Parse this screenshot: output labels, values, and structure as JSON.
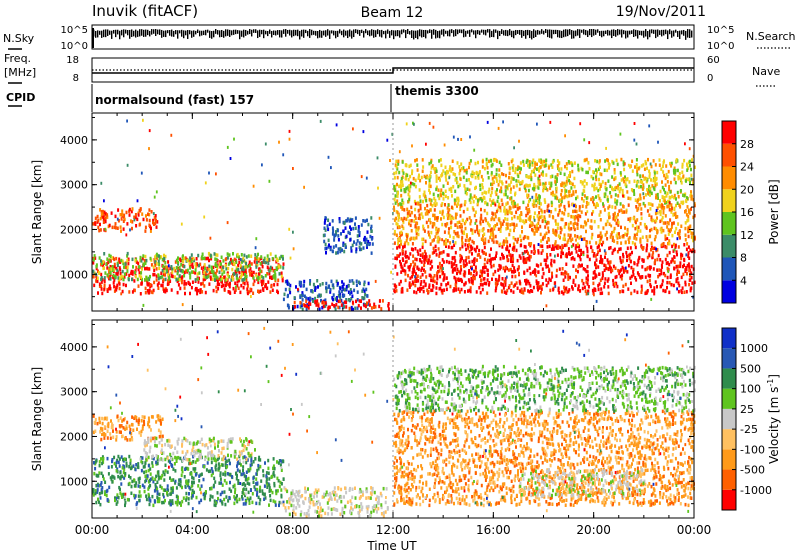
{
  "header": {
    "station": "Inuvik (fitACF)",
    "beam": "Beam 12",
    "date": "19/Nov/2011"
  },
  "labels": {
    "nsky": "N.Sky",
    "freq_line1": "Freq.",
    "freq_line2": "[MHz]",
    "cpid": "CPID",
    "nsearch": "N.Search",
    "nave": "Nave",
    "time_axis": "Time UT"
  },
  "nsky_ticks": [
    "10^5",
    "10^0"
  ],
  "nsearch_ticks": [
    "10^5",
    "10^0"
  ],
  "freq_ticks": [
    "18",
    "8"
  ],
  "nave_ticks": [
    "60",
    "0"
  ],
  "cpid_segments": [
    {
      "label": "normalsound (fast) 157",
      "start": 0,
      "end": 12
    },
    {
      "label": "themis 3300",
      "start": 12,
      "end": 24
    }
  ],
  "chart_data": [
    {
      "type": "heatmap",
      "name": "power",
      "xlabel": "",
      "ylabel": "Slant Range [km]",
      "xlim": [
        0,
        24
      ],
      "ylim": [
        180,
        4600
      ],
      "yticks": [
        1000,
        2000,
        3000,
        4000
      ],
      "colorbar": {
        "label": "Power [dB]",
        "ticks": [
          "4",
          "8",
          "12",
          "16",
          "20",
          "24",
          "28"
        ],
        "tick_values": [
          4,
          8,
          12,
          16,
          20,
          24,
          28
        ],
        "range": [
          0,
          32
        ],
        "colors": [
          "#0000e0",
          "#1f56b8",
          "#3b8c68",
          "#5fc41f",
          "#f0d21c",
          "#ff8c00",
          "#ff5000",
          "#ff0000"
        ]
      },
      "bands": [
        {
          "x": [
            0,
            7.6
          ],
          "y": [
            600,
            1400
          ],
          "level": 7
        },
        {
          "x": [
            0,
            7.6
          ],
          "y": [
            900,
            1500
          ],
          "level": 3
        },
        {
          "x": [
            0,
            2.6
          ],
          "y": [
            2000,
            2500
          ],
          "level": 6
        },
        {
          "x": [
            7.6,
            11.0
          ],
          "y": [
            250,
            900
          ],
          "level": 1
        },
        {
          "x": [
            8.0,
            11.8
          ],
          "y": [
            250,
            450
          ],
          "level": 7
        },
        {
          "x": [
            9.2,
            11.2
          ],
          "y": [
            1500,
            2300
          ],
          "level": 1
        },
        {
          "x": [
            12.0,
            24.0
          ],
          "y": [
            600,
            1700
          ],
          "level": 7
        },
        {
          "x": [
            12.0,
            24.0
          ],
          "y": [
            1700,
            2600
          ],
          "level": 5
        },
        {
          "x": [
            12.0,
            24.0
          ],
          "y": [
            2600,
            3600
          ],
          "level": 4
        }
      ]
    },
    {
      "type": "heatmap",
      "name": "velocity",
      "xlabel": "Time UT",
      "ylabel": "Slant Range [km]",
      "xlim": [
        0,
        24
      ],
      "ylim": [
        180,
        4600
      ],
      "yticks": [
        1000,
        2000,
        3000,
        4000
      ],
      "xticks": [
        "00:00",
        "04:00",
        "08:00",
        "12:00",
        "16:00",
        "20:00",
        "00:00"
      ],
      "xtick_values": [
        0,
        4,
        8,
        12,
        16,
        20,
        24
      ],
      "colorbar": {
        "label": "Velocity [m s^-1]",
        "ticks": [
          "-1000",
          "-500",
          "-100",
          "-25",
          "25",
          "100",
          "500",
          "1000"
        ],
        "colors": [
          "#ff0000",
          "#ff6000",
          "#ff9a1a",
          "#ffc060",
          "#c8c8c8",
          "#5fc41f",
          "#2f8c4c",
          "#2858b4",
          "#1030c8"
        ]
      },
      "bands": [
        {
          "x": [
            0,
            7.6
          ],
          "y": [
            500,
            1600
          ],
          "level": 6
        },
        {
          "x": [
            0,
            2.8
          ],
          "y": [
            1950,
            2500
          ],
          "level": 2
        },
        {
          "x": [
            2.0,
            6.5
          ],
          "y": [
            1500,
            2000
          ],
          "level": 4
        },
        {
          "x": [
            7.6,
            11.8
          ],
          "y": [
            250,
            900
          ],
          "level": 4
        },
        {
          "x": [
            12.0,
            24.0
          ],
          "y": [
            500,
            1700
          ],
          "level": 2
        },
        {
          "x": [
            17.0,
            22.0
          ],
          "y": [
            700,
            1300
          ],
          "level": 4
        },
        {
          "x": [
            12.0,
            24.0
          ],
          "y": [
            1700,
            2600
          ],
          "level": 2
        },
        {
          "x": [
            12.0,
            24.0
          ],
          "y": [
            2600,
            3600
          ],
          "level": 5
        }
      ]
    }
  ]
}
